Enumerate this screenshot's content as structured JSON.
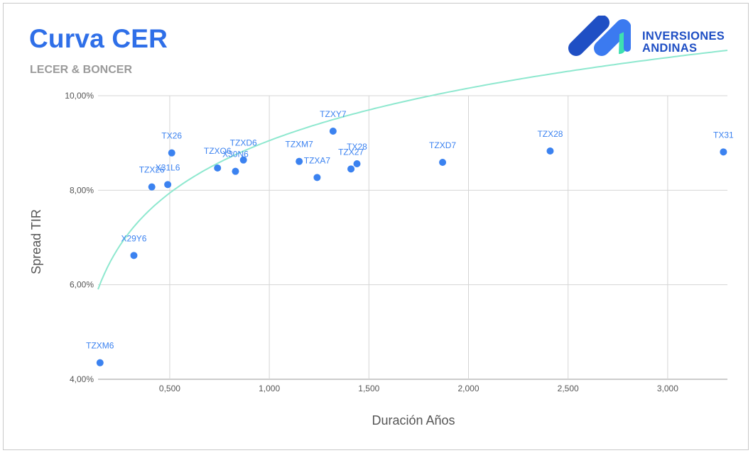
{
  "header": {
    "title": "Curva CER",
    "subtitle": "LECER & BONCER"
  },
  "logo": {
    "line1": "INVERSIONES",
    "line2": "ANDINAS",
    "colors": {
      "dark": "#1f4fc4",
      "light": "#3b7af0",
      "accent": "#3ee0b0"
    }
  },
  "chart_data": {
    "type": "scatter",
    "xlabel": "Duración Años",
    "ylabel": "Spread TIR",
    "xlim": [
      0.14,
      3.3
    ],
    "ylim": [
      4.0,
      10.0
    ],
    "xticks": [
      0.5,
      1.0,
      1.5,
      2.0,
      2.5,
      3.0
    ],
    "xtick_labels": [
      "0,500",
      "1,000",
      "1,500",
      "2,000",
      "2,500",
      "3,000"
    ],
    "yticks": [
      4,
      6,
      8,
      10
    ],
    "ytick_labels": [
      "4,00%",
      "6,00%",
      "8,00%",
      "10,00%"
    ],
    "grid": true,
    "point_color": "#3b82f0",
    "trendline": {
      "type": "logarithmic",
      "a": 9.05,
      "b": 1.6,
      "color": "#8ee8cf"
    },
    "points": [
      {
        "label": "TZXM6",
        "x": 0.15,
        "y": 4.35
      },
      {
        "label": "X29Y6",
        "x": 0.32,
        "y": 6.62
      },
      {
        "label": "TZX26",
        "x": 0.41,
        "y": 8.07
      },
      {
        "label": "X31L6",
        "x": 0.49,
        "y": 8.12
      },
      {
        "label": "TX26",
        "x": 0.51,
        "y": 8.79
      },
      {
        "label": "TZXO6",
        "x": 0.74,
        "y": 8.47
      },
      {
        "label": "X30N6",
        "x": 0.83,
        "y": 8.4
      },
      {
        "label": "TZXD6",
        "x": 0.87,
        "y": 8.64
      },
      {
        "label": "TZXM7",
        "x": 1.15,
        "y": 8.61
      },
      {
        "label": "TZXA7",
        "x": 1.24,
        "y": 8.27
      },
      {
        "label": "TZXY7",
        "x": 1.32,
        "y": 9.25
      },
      {
        "label": "TZX27",
        "x": 1.41,
        "y": 8.45
      },
      {
        "label": "TX28",
        "x": 1.44,
        "y": 8.56
      },
      {
        "label": "TZXD7",
        "x": 1.87,
        "y": 8.59
      },
      {
        "label": "TZX28",
        "x": 2.41,
        "y": 8.83
      },
      {
        "label": "TX31",
        "x": 3.28,
        "y": 8.81
      }
    ]
  }
}
